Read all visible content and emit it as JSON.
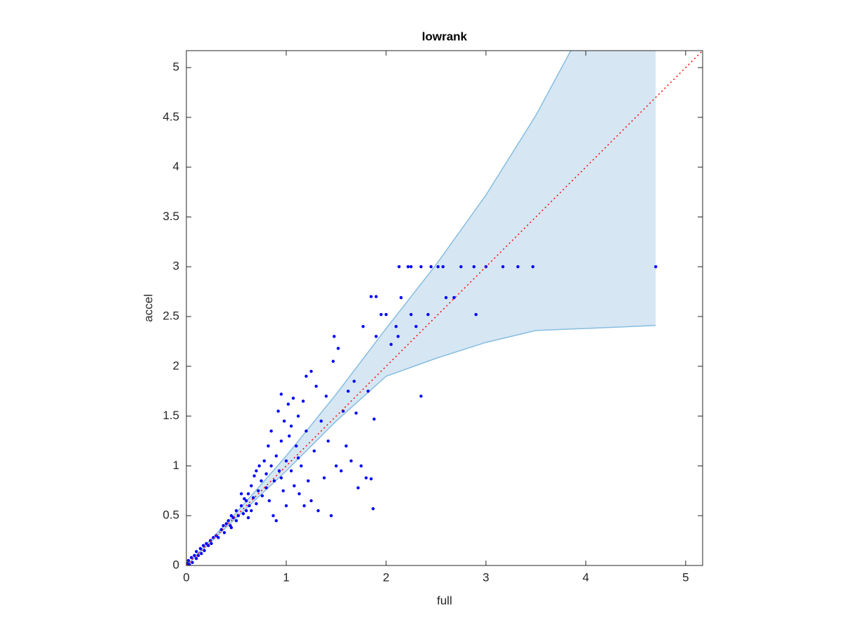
{
  "chart_data": {
    "type": "scatter",
    "title": "lowrank",
    "x_label": "full",
    "y_label": "accel",
    "xlim": [
      0,
      5.17
    ],
    "ylim": [
      0,
      5.17
    ],
    "xticks": [
      0,
      1,
      2,
      3,
      4,
      5
    ],
    "yticks": [
      0,
      0.5,
      1,
      1.5,
      2,
      2.5,
      3,
      3.5,
      4,
      4.5,
      5
    ],
    "box": true,
    "band": {
      "color": "#d6e6f3",
      "edge_color": "#86bde0",
      "x": [
        0,
        0.5,
        1,
        1.5,
        2,
        2.5,
        3,
        3.5,
        4,
        4.7
      ],
      "lower": [
        0,
        0.48,
        0.95,
        1.45,
        1.9,
        2.08,
        2.24,
        2.36,
        2.38,
        2.41
      ],
      "upper": [
        0,
        0.53,
        1.1,
        1.72,
        2.38,
        3.02,
        3.72,
        4.52,
        5.45,
        6.9
      ]
    },
    "reference_line": {
      "color": "#ff0000",
      "x": [
        0,
        5.17
      ],
      "y": [
        0,
        5.17
      ]
    },
    "series": [
      {
        "color": "#0000ff",
        "x": [
          0.01,
          0.02,
          0.03,
          0.05,
          0.06,
          0.08,
          0.1,
          0.1,
          0.12,
          0.14,
          0.15,
          0.17,
          0.18,
          0.2,
          0.22,
          0.24,
          0.25,
          0.27,
          0.3,
          0.32,
          0.35,
          0.37,
          0.38,
          0.4,
          0.42,
          0.44,
          0.45,
          0.47,
          0.5,
          0.52,
          0.5,
          0.55,
          0.57,
          0.6,
          0.6,
          0.62,
          0.63,
          0.65,
          0.67,
          0.68,
          0.7,
          0.72,
          0.73,
          0.75,
          0.76,
          0.78,
          0.8,
          0.8,
          0.82,
          0.83,
          0.85,
          0.85,
          0.87,
          0.88,
          0.9,
          0.9,
          0.92,
          0.93,
          0.95,
          0.95,
          0.97,
          0.98,
          1.0,
          1.0,
          1.02,
          1.03,
          1.05,
          1.07,
          1.08,
          1.1,
          1.12,
          1.13,
          1.15,
          1.17,
          1.18,
          1.2,
          1.2,
          1.22,
          1.25,
          1.25,
          1.28,
          1.3,
          1.32,
          1.35,
          1.38,
          1.4,
          1.42,
          1.45,
          1.47,
          1.48,
          1.5,
          1.52,
          1.55,
          1.57,
          1.6,
          1.62,
          1.65,
          1.68,
          1.7,
          1.72,
          1.75,
          1.77,
          1.8,
          1.82,
          1.85,
          1.87,
          1.88,
          1.9,
          1.85,
          1.9,
          1.95,
          2.0,
          2.05,
          2.1,
          2.12,
          2.15,
          2.25,
          2.3,
          2.35,
          2.42,
          2.6,
          2.68,
          2.9,
          0.55,
          0.65,
          0.7,
          0.45,
          0.58,
          0.62,
          1.12,
          0.95,
          1.05,
          2.13,
          2.22,
          2.25,
          2.35,
          2.45,
          2.52,
          2.57,
          2.75,
          2.88,
          3.0,
          3.17,
          3.32,
          3.47,
          4.7
        ],
        "y": [
          0.02,
          0.05,
          0.01,
          0.08,
          0.03,
          0.1,
          0.07,
          0.14,
          0.1,
          0.17,
          0.12,
          0.2,
          0.15,
          0.22,
          0.2,
          0.25,
          0.22,
          0.28,
          0.3,
          0.28,
          0.36,
          0.4,
          0.33,
          0.42,
          0.45,
          0.4,
          0.5,
          0.48,
          0.55,
          0.5,
          0.45,
          0.6,
          0.52,
          0.65,
          0.55,
          0.72,
          0.6,
          0.8,
          0.68,
          0.9,
          0.62,
          0.75,
          1.0,
          0.85,
          0.7,
          1.05,
          0.78,
          0.92,
          1.2,
          0.65,
          1.0,
          1.35,
          0.5,
          0.85,
          1.1,
          0.45,
          1.55,
          0.95,
          1.25,
          1.72,
          0.75,
          1.45,
          1.05,
          0.6,
          1.62,
          1.3,
          0.95,
          1.68,
          0.8,
          1.2,
          1.5,
          0.72,
          1.0,
          1.65,
          0.6,
          1.35,
          1.9,
          0.85,
          1.95,
          0.65,
          1.15,
          1.8,
          0.55,
          1.45,
          0.88,
          1.7,
          1.25,
          0.5,
          2.05,
          2.3,
          1.0,
          2.18,
          0.95,
          1.55,
          1.2,
          1.75,
          1.05,
          1.85,
          1.53,
          0.78,
          1.0,
          2.4,
          0.88,
          1.75,
          0.87,
          0.57,
          1.47,
          2.3,
          2.7,
          2.7,
          2.52,
          2.52,
          2.22,
          2.4,
          2.3,
          2.69,
          2.52,
          2.4,
          1.7,
          2.52,
          2.69,
          2.69,
          2.52,
          0.72,
          0.55,
          0.95,
          0.38,
          0.67,
          0.48,
          1.08,
          0.88,
          1.4,
          3,
          3,
          3,
          3,
          3,
          3,
          3,
          3,
          3,
          3,
          3,
          3,
          3,
          3
        ]
      }
    ]
  }
}
